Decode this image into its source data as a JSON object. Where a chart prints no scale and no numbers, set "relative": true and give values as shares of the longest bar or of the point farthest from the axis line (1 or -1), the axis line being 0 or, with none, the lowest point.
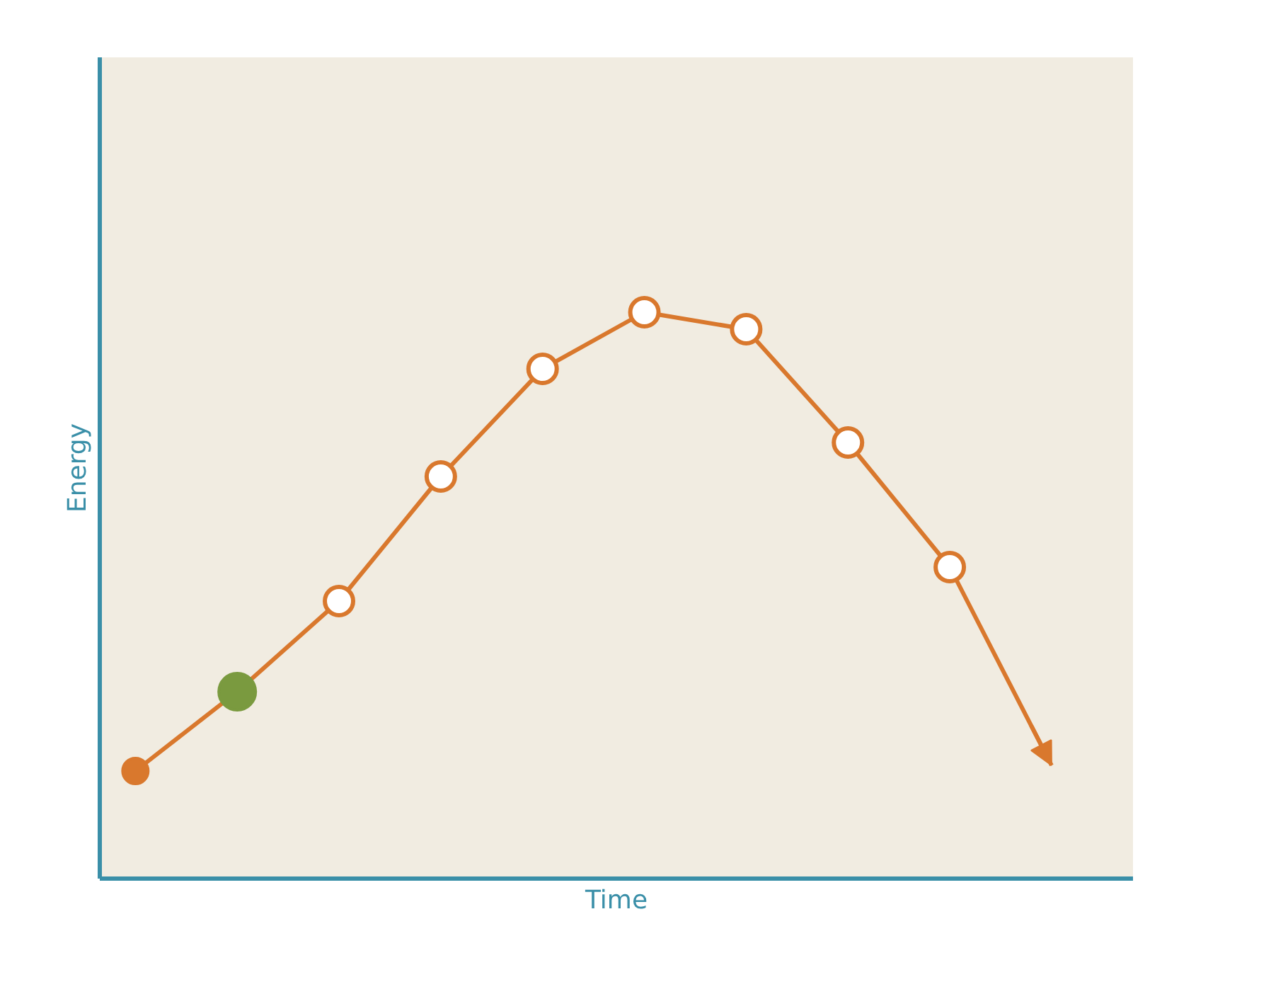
{
  "chart_data": {
    "type": "line",
    "xlabel": "Time",
    "ylabel": "Energy",
    "relative": true,
    "categories": [
      null,
      null,
      null,
      null,
      null,
      null,
      null,
      null,
      null,
      null
    ],
    "series": [
      {
        "color": "#d9782d",
        "values": [
          0.19,
          0.33,
          0.49,
          0.71,
          0.9,
          1,
          0.97,
          0.77,
          0.55,
          0.2
        ],
        "colors": [
          "#d9782d",
          "#7a9a3f",
          "#d9782d",
          "#d9782d",
          "#d9782d",
          "#d9782d",
          "#d9782d",
          "#d9782d",
          "#d9782d",
          "#d9782d"
        ]
      }
    ],
    "marker": "circle",
    "line_style": "solid",
    "grid": false,
    "legend": false
  }
}
